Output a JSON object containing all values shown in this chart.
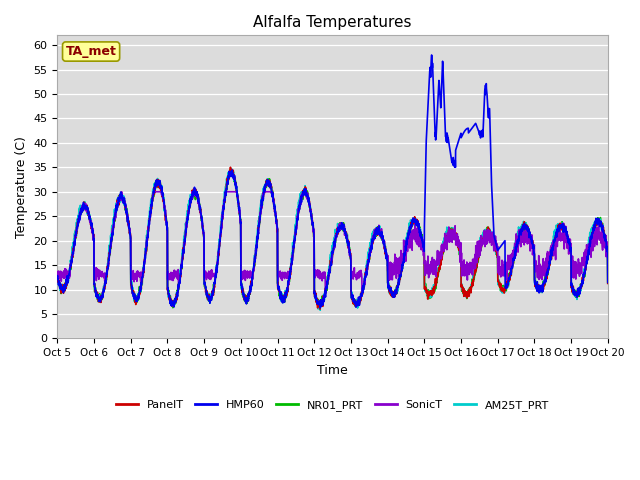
{
  "title": "Alfalfa Temperatures",
  "xlabel": "Time",
  "ylabel": "Temperature (C)",
  "annotation_text": "TA_met",
  "annotation_color": "#8B0000",
  "annotation_bg": "#FFFF99",
  "annotation_edge": "#999900",
  "bg_color": "#DCDCDC",
  "ylim": [
    0,
    62
  ],
  "yticks": [
    0,
    5,
    10,
    15,
    20,
    25,
    30,
    35,
    40,
    45,
    50,
    55,
    60
  ],
  "x_labels": [
    "Oct 5",
    "Oct 6",
    "Oct 7",
    "Oct 8",
    "Oct 9",
    "Oct 10",
    "Oct 11",
    "Oct 12",
    "Oct 13",
    "Oct 14",
    "Oct 15",
    "Oct 16",
    "Oct 17",
    "Oct 18",
    "Oct 19",
    "Oct 20"
  ],
  "series": {
    "PanelT": {
      "color": "#CC0000",
      "lw": 1.2
    },
    "HMP60": {
      "color": "#0000EE",
      "lw": 1.2
    },
    "NR01_PRT": {
      "color": "#00BB00",
      "lw": 1.2
    },
    "SonicT": {
      "color": "#8800CC",
      "lw": 1.2
    },
    "AM25T_PRT": {
      "color": "#00CCCC",
      "lw": 1.2
    }
  },
  "figsize": [
    6.4,
    4.8
  ],
  "dpi": 100
}
